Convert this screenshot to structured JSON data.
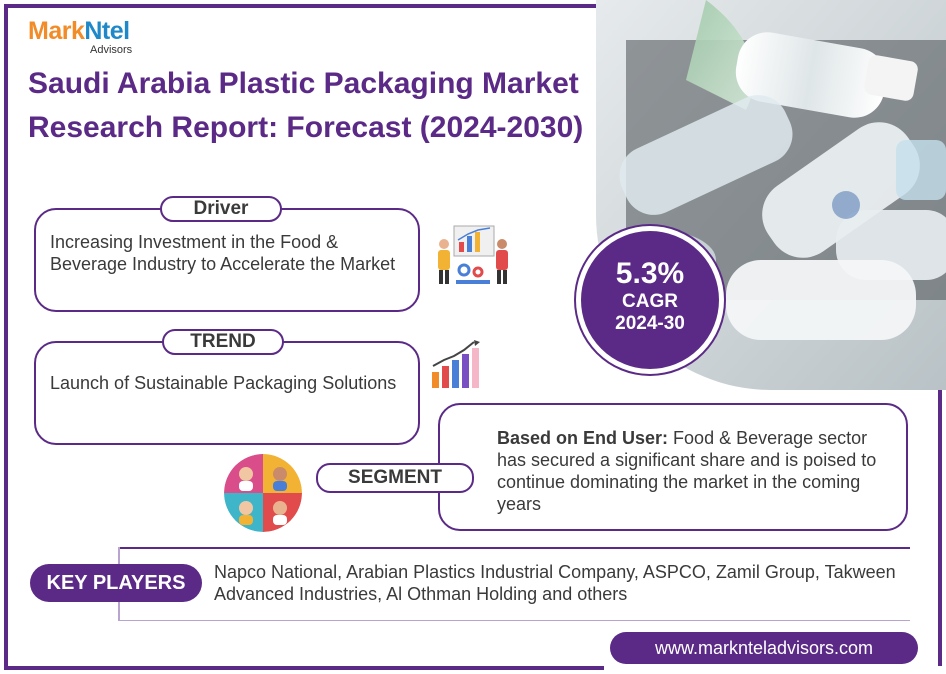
{
  "logo": {
    "brand_part1": "Mark",
    "brand_part2": "Ntel",
    "sub": "Advisors"
  },
  "title": "Saudi Arabia Plastic Packaging Market Research Report: Forecast (2024-2030)",
  "driver": {
    "label": "Driver",
    "text": "Increasing Investment in the Food & Beverage Industry to Accelerate the Market",
    "icon": "business-meeting-icon"
  },
  "trend": {
    "label": "TREND",
    "text": "Launch of Sustainable Packaging Solutions",
    "icon": "growth-chart-icon"
  },
  "cagr": {
    "value": "5.3%",
    "label": "CAGR",
    "period": "2024-30"
  },
  "segment": {
    "label": "SEGMENT",
    "lead": "Based on End User:",
    "text": " Food & Beverage sector has secured a significant share and is poised to continue dominating the market in the coming years",
    "icon": "people-segments-icon"
  },
  "key_players": {
    "label": "KEY PLAYERS",
    "text": "Napco National, Arabian Plastics Industrial Company, ASPCO, Zamil Group, Takween Advanced Industries, Al Othman Holding and others"
  },
  "website": "www.marknteladvisors.com",
  "colors": {
    "primary": "#5b2a86",
    "logo_orange": "#f28c28",
    "logo_blue": "#1e88c8"
  }
}
